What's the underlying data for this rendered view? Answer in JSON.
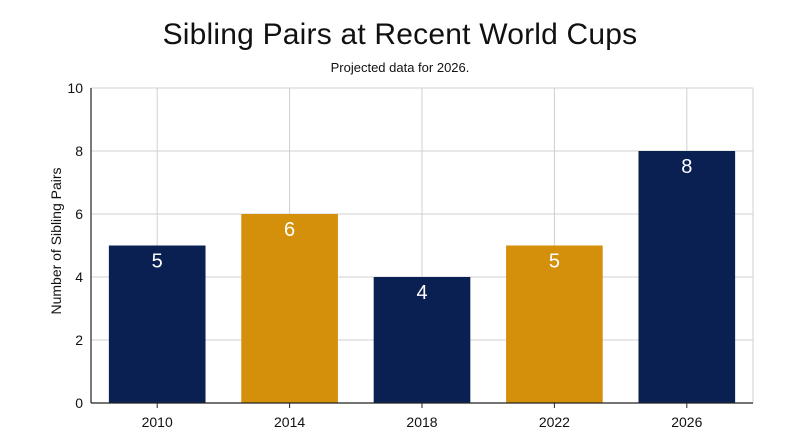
{
  "chart_data": {
    "type": "bar",
    "title": "Sibling Pairs at Recent World Cups",
    "subtitle": "Projected data for 2026.",
    "xlabel": "",
    "ylabel": "Number of Sibling Pairs",
    "categories": [
      "2010",
      "2014",
      "2018",
      "2022",
      "2026"
    ],
    "values": [
      5,
      6,
      4,
      5,
      8
    ],
    "data_labels": [
      "5",
      "6",
      "4",
      "5",
      "8"
    ],
    "bar_colors": [
      "#0b2052",
      "#d4900a",
      "#0b2052",
      "#d4900a",
      "#0b2052"
    ],
    "ylim": [
      0,
      10
    ],
    "yticks": [
      0,
      2,
      4,
      6,
      8,
      10
    ],
    "grid": true,
    "legend": "none"
  }
}
